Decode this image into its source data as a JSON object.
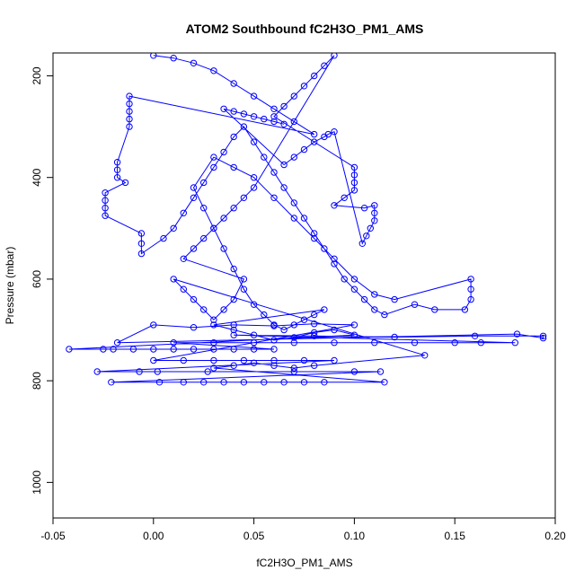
{
  "chart_data": {
    "type": "scatter",
    "title": "ATOM2 Southbound fC2H3O_PM1_AMS",
    "xlabel": "fC2H3O_PM1_AMS",
    "ylabel": "Pressure (mbar)",
    "xlim": [
      -0.05,
      0.2
    ],
    "ylim": [
      1070,
      155
    ],
    "y_reversed": true,
    "x_ticks": [
      -0.05,
      0.0,
      0.05,
      0.1,
      0.15,
      0.2
    ],
    "x_tick_labels": [
      "-0.05",
      "0.00",
      "0.05",
      "0.10",
      "0.15",
      "0.20"
    ],
    "y_ticks": [
      200,
      400,
      600,
      800,
      1000
    ],
    "y_tick_labels": [
      "200",
      "400",
      "600",
      "800",
      "1000"
    ],
    "grid": false,
    "legend": "none",
    "color": "#0000ff",
    "marker": "open-circle",
    "connected_lines": true,
    "series": [
      {
        "points": [
          [
            0.0,
            160
          ],
          [
            0.01,
            165
          ],
          [
            0.02,
            175
          ],
          [
            0.03,
            190
          ],
          [
            0.04,
            215
          ],
          [
            0.05,
            240
          ],
          [
            0.06,
            265
          ],
          [
            0.07,
            290
          ],
          [
            0.08,
            315
          ],
          [
            -0.012,
            240
          ],
          [
            -0.012,
            255
          ],
          [
            -0.012,
            270
          ],
          [
            -0.012,
            285
          ],
          [
            -0.012,
            300
          ],
          [
            -0.018,
            370
          ],
          [
            -0.018,
            385
          ],
          [
            -0.018,
            400
          ],
          [
            -0.014,
            410
          ],
          [
            -0.024,
            430
          ],
          [
            -0.024,
            445
          ],
          [
            -0.024,
            460
          ],
          [
            -0.024,
            475
          ],
          [
            -0.006,
            510
          ],
          [
            -0.006,
            530
          ],
          [
            -0.006,
            550
          ],
          [
            0.005,
            520
          ],
          [
            0.01,
            500
          ],
          [
            0.015,
            470
          ],
          [
            0.02,
            440
          ],
          [
            0.025,
            410
          ],
          [
            0.03,
            380
          ],
          [
            0.035,
            350
          ],
          [
            0.04,
            320
          ],
          [
            0.045,
            300
          ],
          [
            0.05,
            330
          ],
          [
            0.055,
            360
          ],
          [
            0.06,
            390
          ],
          [
            0.065,
            420
          ],
          [
            0.07,
            450
          ],
          [
            0.075,
            480
          ],
          [
            0.08,
            510
          ],
          [
            0.085,
            540
          ],
          [
            0.09,
            570
          ],
          [
            0.095,
            600
          ],
          [
            0.1,
            620
          ],
          [
            0.105,
            640
          ],
          [
            0.11,
            660
          ],
          [
            0.115,
            670
          ],
          [
            0.13,
            650
          ],
          [
            0.14,
            660
          ],
          [
            0.155,
            660
          ],
          [
            0.158,
            640
          ],
          [
            0.158,
            620
          ],
          [
            0.158,
            600
          ],
          [
            0.12,
            640
          ],
          [
            0.11,
            630
          ],
          [
            0.1,
            600
          ],
          [
            0.09,
            560
          ],
          [
            0.08,
            520
          ],
          [
            0.07,
            480
          ],
          [
            0.06,
            440
          ],
          [
            0.05,
            400
          ],
          [
            0.04,
            380
          ],
          [
            0.03,
            360
          ],
          [
            0.02,
            420
          ],
          [
            0.025,
            460
          ],
          [
            0.03,
            500
          ],
          [
            0.035,
            540
          ],
          [
            0.04,
            580
          ],
          [
            0.045,
            620
          ],
          [
            0.05,
            650
          ],
          [
            0.055,
            670
          ],
          [
            0.06,
            690
          ],
          [
            0.065,
            700
          ],
          [
            0.07,
            690
          ],
          [
            0.075,
            680
          ],
          [
            0.08,
            670
          ],
          [
            0.085,
            660
          ],
          [
            0.03,
            690
          ],
          [
            0.04,
            700
          ],
          [
            0.05,
            710
          ],
          [
            0.06,
            720
          ],
          [
            0.07,
            715
          ],
          [
            0.08,
            705
          ],
          [
            0.09,
            700
          ],
          [
            0.1,
            710
          ],
          [
            -0.042,
            738
          ],
          [
            -0.025,
            738
          ],
          [
            -0.02,
            738
          ],
          [
            -0.01,
            738
          ],
          [
            0.0,
            738
          ],
          [
            0.01,
            738
          ],
          [
            0.02,
            738
          ],
          [
            0.03,
            738
          ],
          [
            0.04,
            738
          ],
          [
            0.05,
            738
          ],
          [
            0.06,
            738
          ],
          [
            0.01,
            725
          ],
          [
            0.03,
            725
          ],
          [
            0.05,
            725
          ],
          [
            0.07,
            725
          ],
          [
            0.09,
            725
          ],
          [
            0.11,
            725
          ],
          [
            0.13,
            725
          ],
          [
            0.15,
            725
          ],
          [
            0.163,
            725
          ],
          [
            0.18,
            725
          ],
          [
            0.04,
            710
          ],
          [
            0.08,
            712
          ],
          [
            0.12,
            714
          ],
          [
            0.16,
            712
          ],
          [
            0.194,
            712
          ],
          [
            0.194,
            716
          ],
          [
            0.181,
            708
          ],
          [
            -0.018,
            725
          ],
          [
            0.0,
            690
          ],
          [
            0.02,
            695
          ],
          [
            0.04,
            690
          ],
          [
            0.06,
            692
          ],
          [
            0.08,
            688
          ],
          [
            0.1,
            690
          ],
          [
            0.0,
            760
          ],
          [
            0.015,
            760
          ],
          [
            0.03,
            760
          ],
          [
            0.045,
            760
          ],
          [
            0.06,
            760
          ],
          [
            0.075,
            760
          ],
          [
            0.09,
            760
          ],
          [
            -0.028,
            782
          ],
          [
            -0.007,
            782
          ],
          [
            0.002,
            782
          ],
          [
            0.027,
            782
          ],
          [
            0.07,
            782
          ],
          [
            0.1,
            782
          ],
          [
            0.113,
            782
          ],
          [
            -0.021,
            803
          ],
          [
            0.003,
            803
          ],
          [
            0.015,
            803
          ],
          [
            0.025,
            803
          ],
          [
            0.035,
            803
          ],
          [
            0.045,
            803
          ],
          [
            0.055,
            803
          ],
          [
            0.065,
            803
          ],
          [
            0.075,
            803
          ],
          [
            0.085,
            803
          ],
          [
            0.115,
            803
          ],
          [
            0.03,
            775
          ],
          [
            0.04,
            770
          ],
          [
            0.05,
            765
          ],
          [
            0.06,
            770
          ],
          [
            0.07,
            775
          ],
          [
            0.08,
            770
          ],
          [
            0.135,
            750
          ],
          [
            0.01,
            600
          ],
          [
            0.015,
            620
          ],
          [
            0.02,
            640
          ],
          [
            0.025,
            660
          ],
          [
            0.03,
            680
          ],
          [
            0.035,
            660
          ],
          [
            0.04,
            640
          ],
          [
            0.045,
            600
          ],
          [
            0.015,
            560
          ],
          [
            0.02,
            540
          ],
          [
            0.025,
            520
          ],
          [
            0.03,
            500
          ],
          [
            0.035,
            480
          ],
          [
            0.04,
            460
          ],
          [
            0.045,
            440
          ],
          [
            0.05,
            420
          ],
          [
            0.09,
            160
          ],
          [
            0.085,
            180
          ],
          [
            0.08,
            200
          ],
          [
            0.075,
            220
          ],
          [
            0.07,
            240
          ],
          [
            0.065,
            260
          ],
          [
            0.06,
            280
          ],
          [
            0.1,
            380
          ],
          [
            0.1,
            395
          ],
          [
            0.1,
            410
          ],
          [
            0.1,
            425
          ],
          [
            0.095,
            440
          ],
          [
            0.09,
            455
          ],
          [
            0.105,
            460
          ],
          [
            0.11,
            455
          ],
          [
            0.11,
            470
          ],
          [
            0.11,
            485
          ],
          [
            0.108,
            500
          ],
          [
            0.106,
            515
          ],
          [
            0.104,
            530
          ],
          [
            0.09,
            310
          ],
          [
            0.087,
            315
          ],
          [
            0.085,
            320
          ],
          [
            0.08,
            330
          ],
          [
            0.075,
            345
          ],
          [
            0.07,
            360
          ],
          [
            0.065,
            375
          ],
          [
            0.035,
            265
          ],
          [
            0.04,
            270
          ],
          [
            0.045,
            275
          ],
          [
            0.05,
            280
          ],
          [
            0.055,
            285
          ],
          [
            0.06,
            290
          ],
          [
            0.065,
            295
          ]
        ]
      }
    ]
  }
}
